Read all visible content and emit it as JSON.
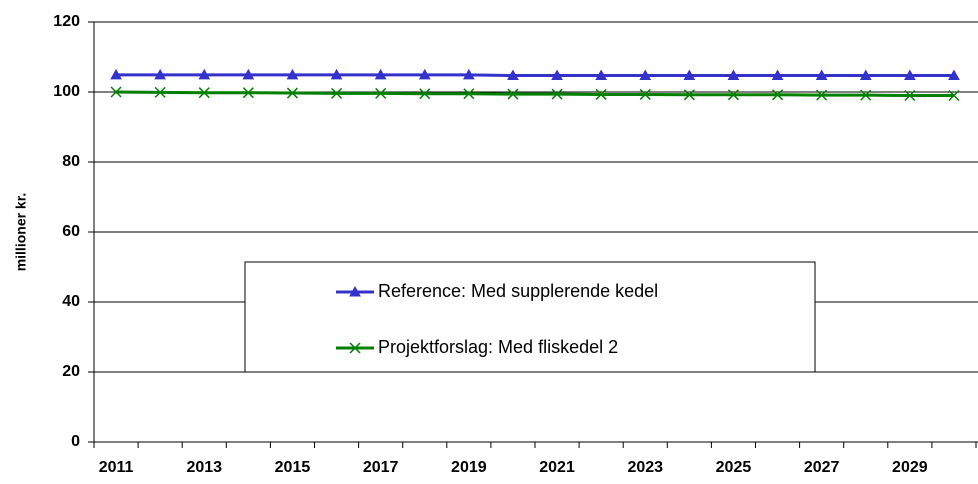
{
  "chart_data": {
    "type": "line",
    "y_label": "millioner kr.",
    "categories": [
      "2011",
      null,
      "2013",
      null,
      "2015",
      null,
      "2017",
      null,
      "2019",
      null,
      "2021",
      null,
      "2023",
      null,
      "2025",
      null,
      "2027",
      null,
      "2029",
      null
    ],
    "series": [
      {
        "name": "Reference: Med supplerende kedel",
        "color": "#3333cc",
        "marker": "triangle",
        "values": [
          104.9,
          104.9,
          104.9,
          104.9,
          104.9,
          104.9,
          104.9,
          104.9,
          104.9,
          104.7,
          104.7,
          104.7,
          104.7,
          104.7,
          104.7,
          104.7,
          104.7,
          104.7,
          104.7,
          104.7
        ]
      },
      {
        "name": "Projektforslag: Med fliskedel 2",
        "color": "#008000",
        "marker": "x",
        "values": [
          100,
          99.9,
          99.8,
          99.8,
          99.7,
          99.6,
          99.6,
          99.5,
          99.5,
          99.4,
          99.4,
          99.3,
          99.3,
          99.2,
          99.2,
          99.2,
          99.1,
          99.1,
          99.0,
          99.0
        ]
      }
    ],
    "ylim": [
      0,
      120
    ],
    "yticks": [
      0,
      20,
      40,
      60,
      80,
      100,
      120
    ],
    "grid": true,
    "legend": "center"
  }
}
